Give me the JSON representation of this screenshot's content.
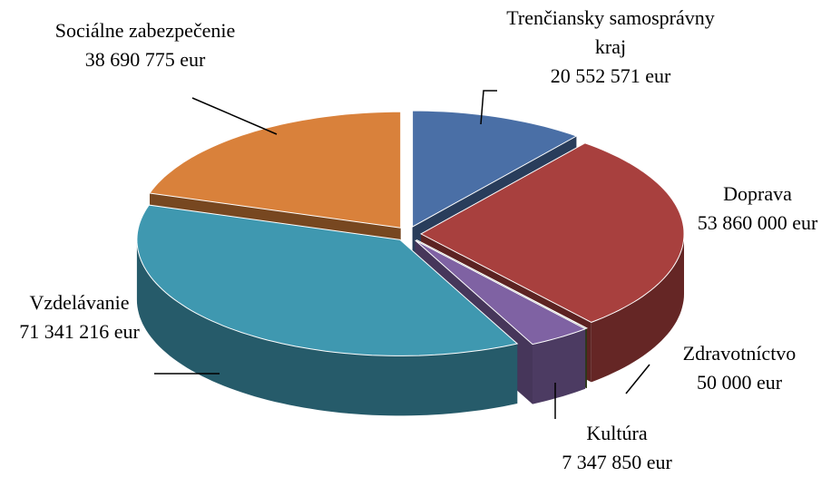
{
  "chart_data": {
    "type": "pie3d",
    "categories": [
      "Trenčiansky samosprávny kraj",
      "Doprava",
      "Zdravotníctvo",
      "Kultúra",
      "Vzdelávanie",
      "Sociálne zabezpečenie"
    ],
    "values": [
      20552571,
      53860000,
      50000,
      7347850,
      71341216,
      38690775
    ],
    "value_labels": [
      "20 552 571 eur",
      "53 860 000 eur",
      "50 000 eur",
      "7 347 850 eur",
      "71 341 216 eur",
      "38 690 775 eur"
    ],
    "colors": [
      "#4a6fa6",
      "#a8403e",
      "#4f6228",
      "#7f62a3",
      "#3f98b0",
      "#d9813b"
    ]
  }
}
